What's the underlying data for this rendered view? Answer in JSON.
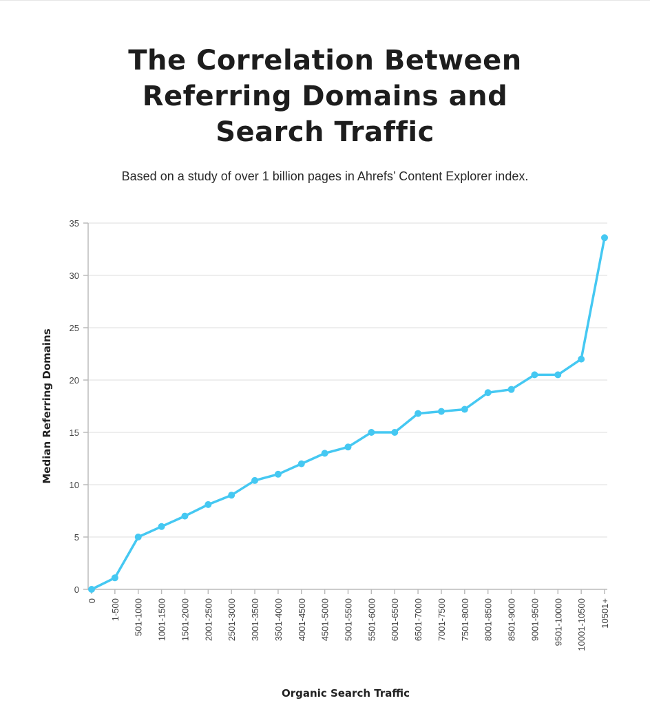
{
  "title": "The Correlation Between Referring Domains and Search Traffic",
  "title_lines": [
    "The Correlation Between",
    "Referring Domains and",
    "Search Traffic"
  ],
  "subtitle": "Based on a study of over 1 billion pages in Ahrefs’ Content Explorer index.",
  "chart_data": {
    "type": "line",
    "title": "The Correlation Between Referring Domains and Search Traffic",
    "xlabel": "Organic Search Traffic",
    "ylabel": "Median Referring Domains",
    "categories": [
      "0",
      "1-500",
      "501-1000",
      "1001-1500",
      "1501-2000",
      "2001-2500",
      "2501-3000",
      "3001-3500",
      "3501-4000",
      "4001-4500",
      "4501-5000",
      "5001-5500",
      "5501-6000",
      "6001-6500",
      "6501-7000",
      "7001-7500",
      "7501-8000",
      "8001-8500",
      "8501-9000",
      "9001-9500",
      "9501-10000",
      "10001-10500",
      "10501+"
    ],
    "values": [
      0,
      1.1,
      5,
      6,
      7,
      8.1,
      9,
      10.4,
      11,
      12,
      13,
      13.6,
      15,
      15,
      16.8,
      17,
      17.2,
      18.8,
      19.1,
      20.5,
      20.5,
      22,
      33.6
    ],
    "ylim": [
      0,
      35
    ],
    "yticks": [
      0,
      5,
      10,
      15,
      20,
      25,
      30,
      35
    ],
    "grid": true,
    "markers": true,
    "line_color": "#45c8f2",
    "grid_color": "#e8e8e8",
    "axis_color": "#bbbbbb"
  }
}
